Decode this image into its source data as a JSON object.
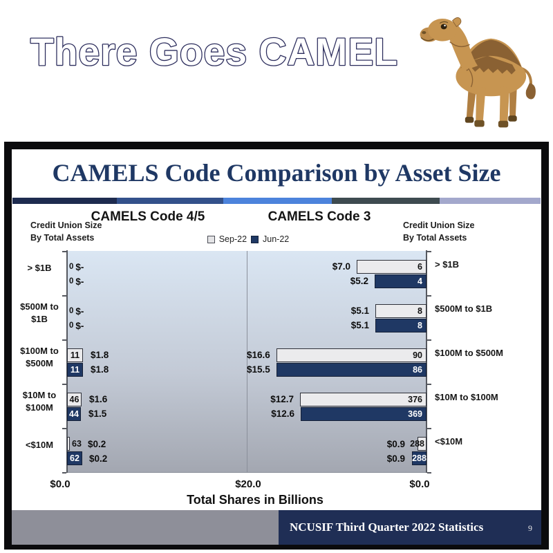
{
  "meme": {
    "title": "There Goes CAMEL",
    "camel_icon": "camel-illustration"
  },
  "slide": {
    "title": "CAMELS Code Comparison by Asset Size",
    "axis_note_left": "Credit Union Size\nBy Total Assets",
    "axis_note_right": "Credit Union Size\nBy Total Assets",
    "x_axis": {
      "tick_left": "$0.0",
      "tick_center": "$20.0",
      "tick_right": "$0.0",
      "title": "Total Shares in Billions"
    },
    "footer": {
      "text": "NCUSIF Third Quarter 2022 Statistics",
      "page": "9"
    },
    "colors": {
      "title_navy": "#1F3864",
      "bar_navy": "#1F3864",
      "bar_gray": "#EBEBED",
      "footer_navy": "#1F2E55",
      "footer_gray": "#8E8F99",
      "divider_segments": [
        "#1E2B4F",
        "#33518B",
        "#4C83DC",
        "#3E4B50",
        "#A3A8CC"
      ]
    }
  },
  "chart_data": {
    "type": "bar",
    "orientation": "horizontal-butterfly",
    "title": "CAMELS Code Comparison by Asset Size",
    "xlabel": "Total Shares in Billions",
    "legend": [
      "Sep-22",
      "Jun-22"
    ],
    "categories": [
      "> $1B",
      "$500M to $1B",
      "$100M to $500M",
      "$10M to $100M",
      "<$10M"
    ],
    "categories_left_display": [
      "> $1B",
      "$500M to\n$1B",
      "$100M to\n$500M",
      "$10M to\n$100M",
      "<$10M"
    ],
    "categories_right_display": [
      "> $1B",
      "$500M to $1B",
      "$100M to $500M",
      "$10M to $100M",
      "<$10M"
    ],
    "x_tick_labels": [
      "$0.0",
      "$20.0",
      "$0.0"
    ],
    "panels": [
      {
        "name": "CAMELS Code 4/5",
        "side": "left",
        "axis_max": 20,
        "series": [
          {
            "name": "Sep-22",
            "shares_billions": [
              0,
              0,
              1.8,
              1.6,
              0.2
            ],
            "cu_counts": [
              0,
              0,
              11,
              46,
              63
            ]
          },
          {
            "name": "Jun-22",
            "shares_billions": [
              0,
              0,
              1.8,
              1.5,
              0.2
            ],
            "cu_counts": [
              0,
              0,
              11,
              44,
              62
            ]
          }
        ]
      },
      {
        "name": "CAMELS Code 3",
        "side": "right",
        "axis_max": 18,
        "series": [
          {
            "name": "Sep-22",
            "shares_billions": [
              7.0,
              5.1,
              16.6,
              12.7,
              0.9
            ],
            "cu_counts": [
              6,
              8,
              90,
              376,
              288
            ]
          },
          {
            "name": "Jun-22",
            "shares_billions": [
              5.2,
              5.1,
              15.5,
              12.6,
              0.9
            ],
            "cu_counts": [
              4,
              8,
              86,
              369,
              288
            ]
          }
        ]
      }
    ]
  }
}
